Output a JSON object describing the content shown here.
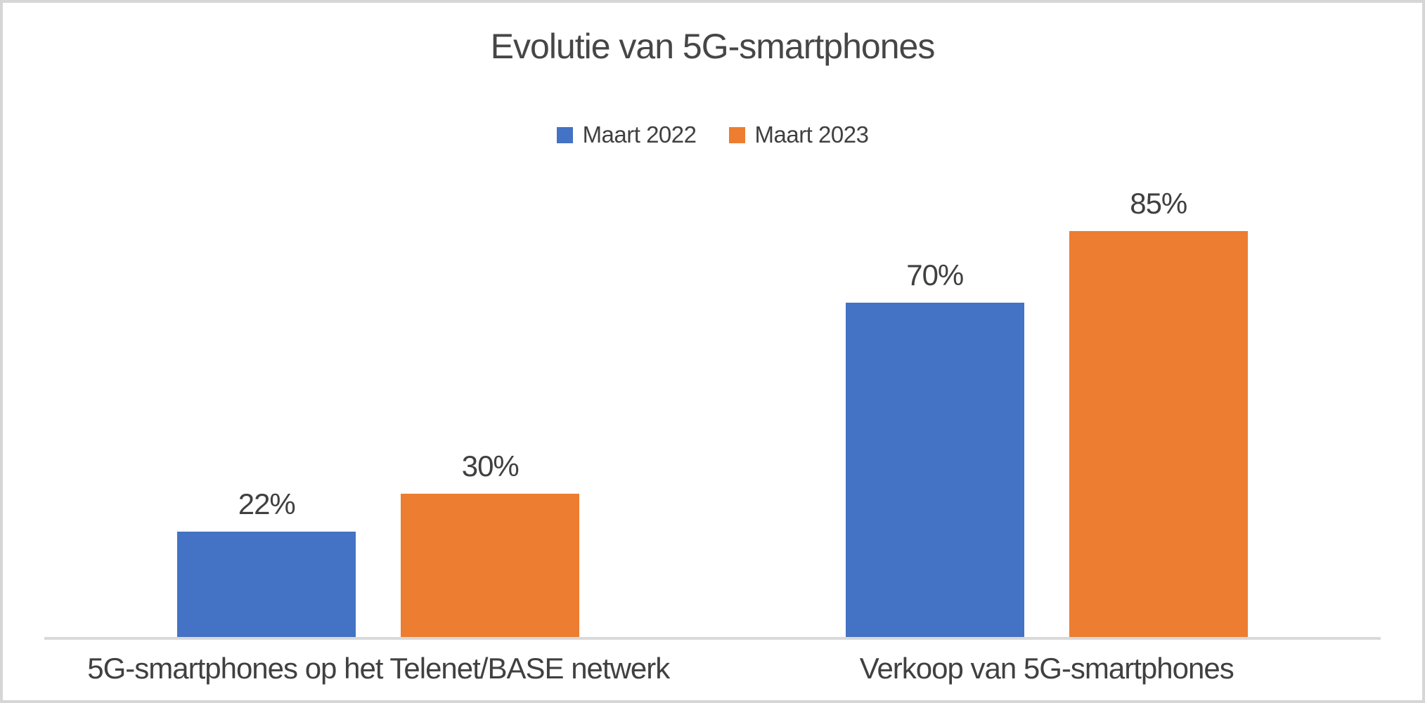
{
  "chart_data": {
    "type": "bar",
    "title": "Evolutie van 5G-smartphones",
    "categories": [
      "5G-smartphones op het Telenet/BASE netwerk",
      "Verkoop van 5G-smartphones"
    ],
    "series": [
      {
        "name": "Maart 2022",
        "color": "#4472C4",
        "values": [
          22,
          70
        ]
      },
      {
        "name": "Maart 2023",
        "color": "#ED7D31",
        "values": [
          30,
          85
        ]
      }
    ],
    "data_labels": [
      [
        "22%",
        "70%"
      ],
      [
        "30%",
        "85%"
      ]
    ],
    "data_label_suffix": "%",
    "ylim": [
      0,
      100
    ],
    "grid": false,
    "legend_position": "top",
    "xlabel": "",
    "ylabel": ""
  },
  "colors": {
    "background": "#FFFFFF",
    "border": "#D6D6D6",
    "axis_line": "#D9D9D9",
    "title_text": "#464646",
    "label_text": "#404040",
    "series_blue": "#4472C4",
    "series_orange": "#ED7D31"
  }
}
